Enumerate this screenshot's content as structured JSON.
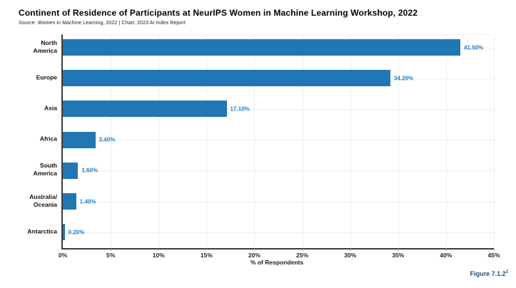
{
  "header": {
    "title": "Continent of Residence of Participants at NeurIPS Women in Machine Learning Workshop, 2022",
    "source": "Source: Women in Machine Learning, 2022 | Chart: 2023 AI Index Report"
  },
  "chart_data": {
    "type": "bar",
    "orientation": "horizontal",
    "title": "Continent of Residence of Participants at NeurIPS Women in Machine Learning Workshop, 2022",
    "categories": [
      "North\nAmerica",
      "Europe",
      "Asia",
      "Africa",
      "South\nAmerica",
      "Australia/\nOceania",
      "Antarctica"
    ],
    "values": [
      41.5,
      34.2,
      17.1,
      3.4,
      1.6,
      1.4,
      0.2
    ],
    "value_labels": [
      "41.50%",
      "34.20%",
      "17.10%",
      "3.40%",
      "1.60%",
      "1.40%",
      "0.20%"
    ],
    "xlabel": "% of Respondents",
    "ylabel": "",
    "xlim": [
      0,
      45
    ],
    "xticks": [
      "0%",
      "5%",
      "10%",
      "15%",
      "20%",
      "25%",
      "30%",
      "35%",
      "40%",
      "45%"
    ],
    "grid": true,
    "legend": "none",
    "bar_color": "#2077b4",
    "value_label_color": "#1e7ecb",
    "axis_color": "#3d3d3d",
    "gridline_color": "#ededed",
    "figure_label_color": "#29506d"
  },
  "figure_label": {
    "text": "Figure 7.1.2",
    "superscript": "2"
  }
}
